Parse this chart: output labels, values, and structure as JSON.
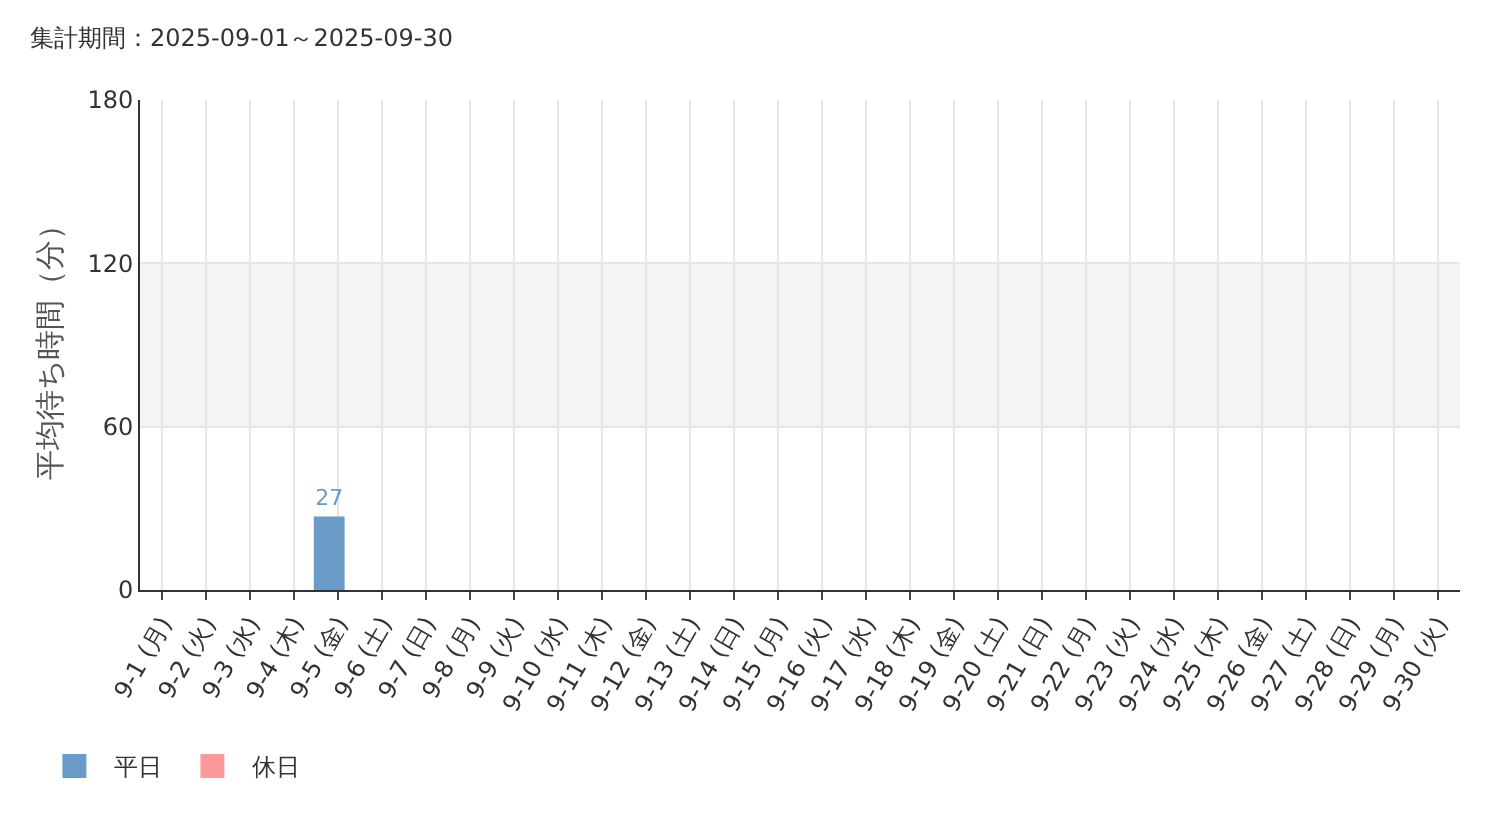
{
  "chart_data": {
    "type": "bar",
    "title": "集計期間：2025-09-01～2025-09-30",
    "ylabel": "平均待ち時間（分）",
    "categories": [
      "9-1 (月)",
      "9-2 (火)",
      "9-3 (水)",
      "9-4 (木)",
      "9-5 (金)",
      "9-6 (土)",
      "9-7 (日)",
      "9-8 (月)",
      "9-9 (火)",
      "9-10 (水)",
      "9-11 (木)",
      "9-12 (金)",
      "9-13 (土)",
      "9-14 (日)",
      "9-15 (月)",
      "9-16 (火)",
      "9-17 (水)",
      "9-18 (木)",
      "9-19 (金)",
      "9-20 (土)",
      "9-21 (日)",
      "9-22 (月)",
      "9-23 (火)",
      "9-24 (水)",
      "9-25 (木)",
      "9-26 (金)",
      "9-27 (土)",
      "9-28 (日)",
      "9-29 (月)",
      "9-30 (火)"
    ],
    "series": [
      {
        "name": "平日",
        "color": "#6b9bc8",
        "values": [
          null,
          null,
          null,
          null,
          27,
          null,
          null,
          null,
          null,
          null,
          null,
          null,
          null,
          null,
          null,
          null,
          null,
          null,
          null,
          null,
          null,
          null,
          null,
          null,
          null,
          null,
          null,
          null,
          null,
          null
        ],
        "value_labels": [
          null,
          null,
          null,
          null,
          "27",
          null,
          null,
          null,
          null,
          null,
          null,
          null,
          null,
          null,
          null,
          null,
          null,
          null,
          null,
          null,
          null,
          null,
          null,
          null,
          null,
          null,
          null,
          null,
          null,
          null
        ]
      },
      {
        "name": "休日",
        "color": "#ff9999",
        "values": [
          null,
          null,
          null,
          null,
          null,
          null,
          null,
          null,
          null,
          null,
          null,
          null,
          null,
          null,
          null,
          null,
          null,
          null,
          null,
          null,
          null,
          null,
          null,
          null,
          null,
          null,
          null,
          null,
          null,
          null
        ]
      }
    ],
    "ylim": [
      0,
      180
    ],
    "yticks": [
      0,
      60,
      120,
      180
    ],
    "grid": true,
    "legend": "bottom left",
    "bands": [
      {
        "axis": "y",
        "from": 60,
        "to": 120,
        "color": "#f4f4f4"
      }
    ]
  }
}
